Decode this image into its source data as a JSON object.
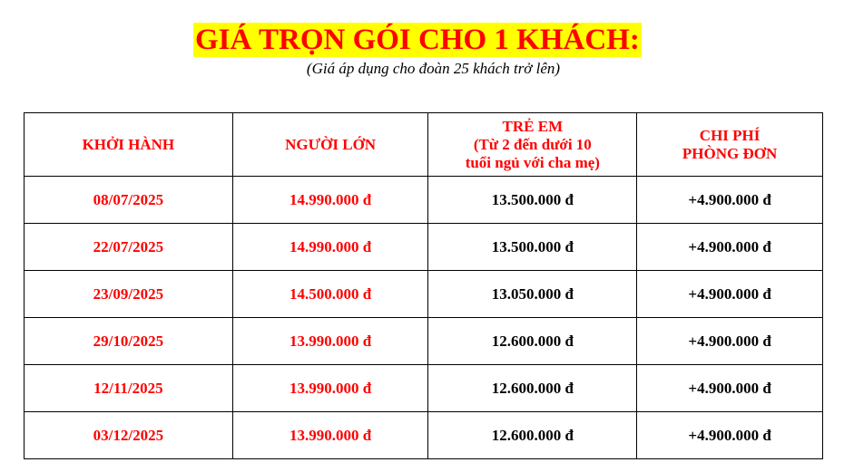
{
  "title": "GIÁ TRỌN GÓI CHO 1 KHÁCH:",
  "subtitle": "(Giá áp dụng cho đoàn 25 khách trở lên)",
  "headers": [
    "KHỞI HÀNH",
    "NGƯỜI LỚN",
    "TRẺ EM",
    "(Từ 2 đến dưới 10",
    "tuổi ngủ với cha mẹ)",
    "CHI PHÍ",
    "PHÒNG ĐƠN"
  ],
  "rows": [
    [
      "08/07/2025",
      "14.990.000 đ",
      "13.500.000 đ",
      "+4.900.000 đ"
    ],
    [
      "22/07/2025",
      "14.990.000 đ",
      "13.500.000 đ",
      "+4.900.000 đ"
    ],
    [
      "23/09/2025",
      "14.500.000 đ",
      "13.050.000 đ",
      "+4.900.000 đ"
    ],
    [
      "29/10/2025",
      "13.990.000 đ",
      "12.600.000 đ",
      "+4.900.000 đ"
    ],
    [
      "12/11/2025",
      "13.990.000 đ",
      "12.600.000 đ",
      "+4.900.000 đ"
    ],
    [
      "03/12/2025",
      "13.990.000 đ",
      "12.600.000 đ",
      "+4.900.000 đ"
    ]
  ],
  "colors": {
    "accent": "#ff0000",
    "highlight": "#ffff00"
  }
}
